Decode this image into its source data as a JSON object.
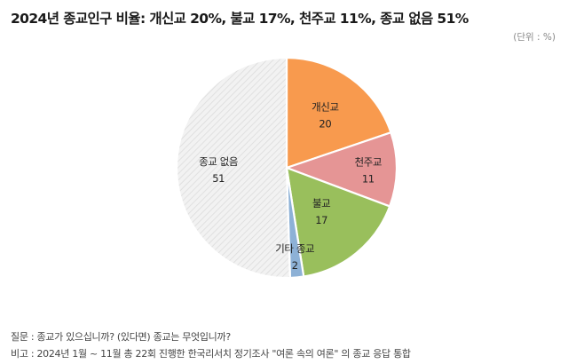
{
  "title": "2024년 종교인구 비율: 개신교 20%, 불교 17%, 천주교 11%, 종교 없음 51%",
  "unit": "(단위 : %)",
  "notes": {
    "question": "질문 : 종교가 있으십니까? (있다면) 종교는 무엇입니까?",
    "remark": "비고 : 2024년 1월 ~ 11월 총 22회 진행한 한국리서치 정기조사 \"여론 속의 여론\" 의 종교 응답 통합"
  },
  "chart_data": {
    "type": "pie",
    "title": "2024년 종교인구 비율: 개신교 20%, 불교 17%, 천주교 11%, 종교 없음 51%",
    "slices": [
      {
        "label": "개신교",
        "value": 20,
        "color": "#F89A4E"
      },
      {
        "label": "천주교",
        "value": 11,
        "color": "#E59595"
      },
      {
        "label": "불교",
        "value": 17,
        "color": "#99BF5C"
      },
      {
        "label": "기타 종교",
        "value": 2,
        "color": "#8DB1D6"
      },
      {
        "label": "종교 없음",
        "value": 51,
        "color": "#F0F0F0",
        "pattern": "diagonal-hatch"
      }
    ],
    "start_angle": "12 o'clock",
    "direction": "clockwise"
  }
}
